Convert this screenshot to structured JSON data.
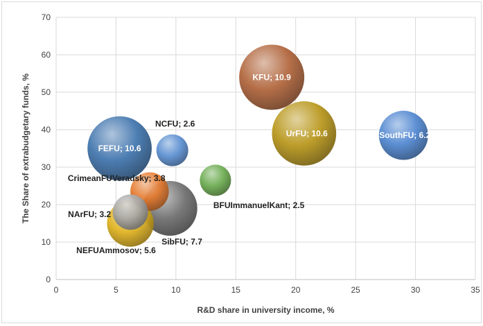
{
  "chart_data": {
    "type": "bubble",
    "title": "",
    "xlabel": "R&D share in university income, %",
    "ylabel": "The Share of extrabudgetary funds, %",
    "xlim": [
      0,
      35
    ],
    "ylim": [
      0,
      70
    ],
    "xticks": [
      0,
      5,
      10,
      15,
      20,
      25,
      30,
      35
    ],
    "yticks": [
      0,
      10,
      20,
      30,
      40,
      50,
      60,
      70
    ],
    "grid": true,
    "legend": "none",
    "points": [
      {
        "label": "FEFU; 10.6",
        "x": 5.3,
        "y": 35,
        "size": 10.6,
        "color": "#3f74ad",
        "label_color": "#ffffff"
      },
      {
        "label": "NCFU; 2.6",
        "x": 9.7,
        "y": 34.5,
        "size": 2.6,
        "color": "#5b8fd1",
        "label_color": "#1f1f1f"
      },
      {
        "label": "KFU; 10.9",
        "x": 18,
        "y": 54,
        "size": 10.9,
        "color": "#b0643a",
        "label_color": "#ffffff"
      },
      {
        "label": "UrFU; 10.6",
        "x": 20.7,
        "y": 39,
        "size": 10.6,
        "color": "#b8961a",
        "label_color": "#ffffff"
      },
      {
        "label": "SouthFU; 6.2",
        "x": 29,
        "y": 38.5,
        "size": 6.2,
        "color": "#4f86d0",
        "label_color": "#ffffff"
      },
      {
        "label": "BFUImmanuelKant; 2.5",
        "x": 13.3,
        "y": 26.5,
        "size": 2.5,
        "color": "#6bab4f",
        "label_color": "#1f1f1f"
      },
      {
        "label": "CrimeanFUVeradsky; 3.8",
        "x": 7.8,
        "y": 23.5,
        "size": 3.8,
        "color": "#e57a2e",
        "label_color": "#1f1f1f"
      },
      {
        "label": "NArFU; 3.2",
        "x": 6.2,
        "y": 18,
        "size": 3.2,
        "color": "#a6a6a6",
        "label_color": "#1f1f1f"
      },
      {
        "label": "NEFUAmmosov; 5.6",
        "x": 6.2,
        "y": 15,
        "size": 5.6,
        "color": "#e0b21e",
        "label_color": "#1f1f1f"
      },
      {
        "label": "SibFU; 7.7",
        "x": 9.5,
        "y": 19,
        "size": 7.7,
        "color": "#6e6e6e",
        "label_color": "#1f1f1f"
      }
    ]
  }
}
